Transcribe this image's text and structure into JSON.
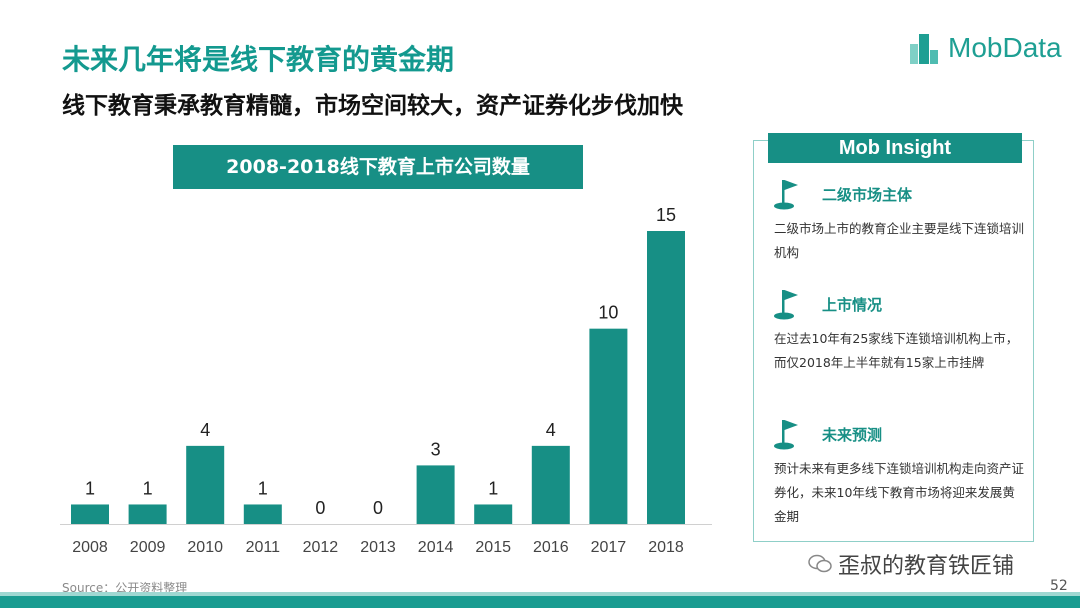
{
  "header": {
    "title": "未来几年将是线下教育的黄金期",
    "subtitle": "线下教育秉承教育精髓，市场空间较大，资产证券化步伐加快",
    "brand": "MobData"
  },
  "chart_data": {
    "type": "bar",
    "title": "2008-2018线下教育上市公司数量",
    "categories": [
      "2008",
      "2009",
      "2010",
      "2011",
      "2012",
      "2013",
      "2014",
      "2015",
      "2016",
      "2017",
      "2018"
    ],
    "values": [
      1,
      1,
      4,
      1,
      0,
      0,
      3,
      1,
      4,
      10,
      15
    ],
    "xlabel": "",
    "ylabel": "",
    "ylim": [
      0,
      15
    ],
    "grid": false,
    "bar_color": "#178f85"
  },
  "insight": {
    "title": "Mob Insight",
    "sections": [
      {
        "title": "二级市场主体",
        "body": "二级市场上市的教育企业主要是线下连锁培训机构"
      },
      {
        "title": "上市情况",
        "body": "在过去10年有25家线下连锁培训机构上市，而仅2018年上半年就有15家上市挂牌"
      },
      {
        "title": "未来预测",
        "body": "预计未来有更多线下连锁培训机构走向资产证券化，未来10年线下教育市场将迎来发展黄金期"
      }
    ]
  },
  "footer": {
    "source": "Source：公开资料整理",
    "watermark": "歪叔的教育铁匠铺",
    "page": "52"
  },
  "colors": {
    "accent": "#178f85",
    "title": "#13998f"
  }
}
